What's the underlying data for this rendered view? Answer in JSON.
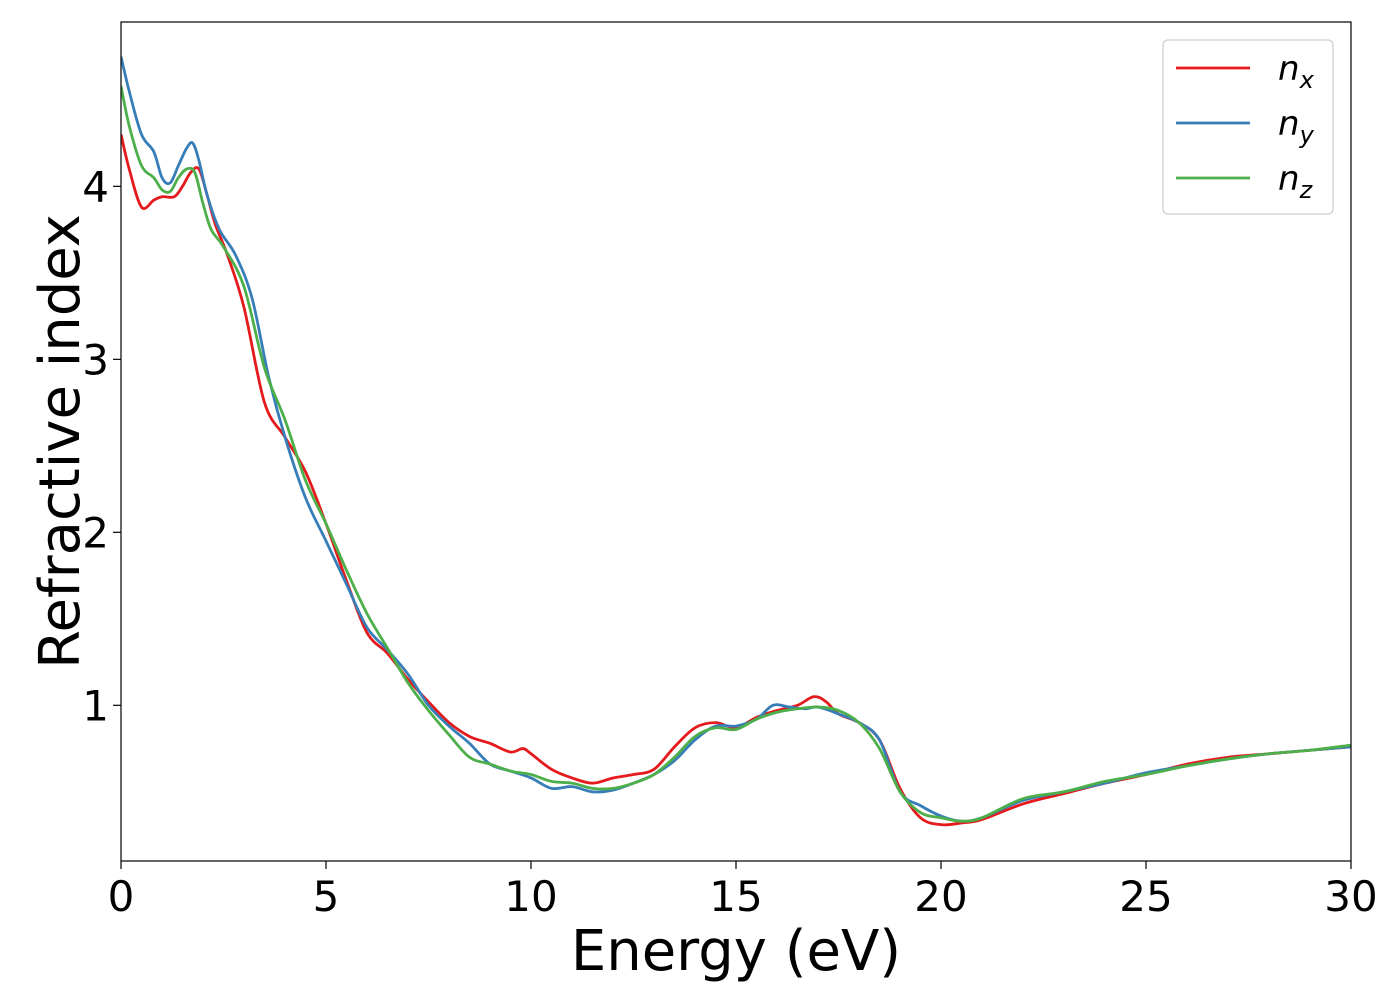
{
  "chart_data": {
    "type": "line",
    "xlabel": "Energy (eV)",
    "ylabel": "Refractive index",
    "xlim": [
      0,
      30
    ],
    "ylim": [
      0.1,
      4.95
    ],
    "xticks": [
      0,
      5,
      10,
      15,
      20,
      25,
      30
    ],
    "yticks": [
      1,
      2,
      3,
      4
    ],
    "grid": false,
    "legend_position": "top-right",
    "series": [
      {
        "name": "n_x",
        "legend_base": "n",
        "legend_sub": "x",
        "color": "#e41a1c",
        "x": [
          0,
          0.2,
          0.5,
          0.8,
          1.0,
          1.3,
          1.5,
          1.7,
          1.9,
          2.1,
          2.3,
          2.6,
          3.0,
          3.5,
          4.0,
          4.5,
          5.0,
          5.5,
          6.0,
          6.5,
          7.0,
          7.5,
          8.0,
          8.5,
          9.0,
          9.5,
          9.8,
          10.0,
          10.5,
          11.0,
          11.5,
          12.0,
          12.5,
          13.0,
          13.5,
          14.0,
          14.5,
          15.0,
          15.5,
          16.0,
          16.5,
          16.9,
          17.2,
          17.5,
          18.0,
          18.5,
          19.0,
          19.5,
          20.0,
          20.5,
          21.0,
          22.0,
          23.0,
          24.0,
          25.0,
          26.0,
          27.0,
          28.0,
          29.0,
          30.0
        ],
        "y": [
          4.3,
          4.1,
          3.88,
          3.92,
          3.94,
          3.94,
          4.0,
          4.08,
          4.1,
          3.95,
          3.78,
          3.6,
          3.3,
          2.75,
          2.55,
          2.35,
          2.05,
          1.72,
          1.42,
          1.3,
          1.15,
          1.02,
          0.9,
          0.82,
          0.78,
          0.73,
          0.75,
          0.72,
          0.63,
          0.58,
          0.55,
          0.58,
          0.6,
          0.63,
          0.76,
          0.87,
          0.9,
          0.87,
          0.93,
          0.97,
          1.0,
          1.05,
          1.02,
          0.95,
          0.9,
          0.8,
          0.52,
          0.35,
          0.31,
          0.32,
          0.34,
          0.43,
          0.49,
          0.55,
          0.6,
          0.66,
          0.7,
          0.72,
          0.74,
          0.76
        ]
      },
      {
        "name": "n_y",
        "legend_base": "n",
        "legend_sub": "y",
        "color": "#377eb8",
        "x": [
          0,
          0.2,
          0.5,
          0.8,
          1.0,
          1.2,
          1.4,
          1.6,
          1.75,
          1.9,
          2.1,
          2.4,
          2.8,
          3.2,
          3.6,
          4.0,
          4.5,
          5.0,
          5.5,
          6.0,
          6.5,
          7.0,
          7.5,
          8.0,
          8.5,
          9.0,
          9.5,
          10.0,
          10.5,
          11.0,
          11.5,
          12.0,
          12.5,
          13.0,
          13.5,
          14.0,
          14.5,
          15.0,
          15.5,
          15.9,
          16.3,
          16.7,
          17.0,
          17.5,
          18.0,
          18.5,
          19.0,
          19.5,
          20.0,
          20.5,
          21.0,
          22.0,
          23.0,
          24.0,
          25.0,
          26.0,
          27.0,
          28.0,
          29.0,
          30.0
        ],
        "y": [
          4.75,
          4.55,
          4.3,
          4.2,
          4.05,
          4.02,
          4.12,
          4.22,
          4.25,
          4.15,
          3.95,
          3.75,
          3.6,
          3.35,
          2.9,
          2.55,
          2.2,
          1.95,
          1.7,
          1.45,
          1.32,
          1.18,
          1.0,
          0.88,
          0.78,
          0.66,
          0.62,
          0.58,
          0.52,
          0.53,
          0.5,
          0.51,
          0.55,
          0.6,
          0.68,
          0.8,
          0.88,
          0.88,
          0.92,
          1.0,
          0.99,
          0.98,
          0.99,
          0.95,
          0.9,
          0.8,
          0.5,
          0.42,
          0.36,
          0.33,
          0.35,
          0.45,
          0.5,
          0.55,
          0.61,
          0.65,
          0.69,
          0.72,
          0.74,
          0.76
        ]
      },
      {
        "name": "n_z",
        "legend_base": "n",
        "legend_sub": "z",
        "color": "#4daf4a",
        "x": [
          0,
          0.2,
          0.5,
          0.8,
          1.0,
          1.2,
          1.4,
          1.6,
          1.8,
          2.0,
          2.2,
          2.5,
          3.0,
          3.5,
          4.0,
          4.5,
          5.0,
          5.5,
          6.0,
          6.5,
          7.0,
          7.5,
          8.0,
          8.5,
          9.0,
          9.5,
          10.0,
          10.5,
          11.0,
          11.5,
          12.0,
          12.5,
          13.0,
          13.5,
          14.0,
          14.5,
          15.0,
          15.5,
          16.0,
          16.5,
          17.0,
          17.5,
          18.0,
          18.5,
          19.0,
          19.5,
          20.0,
          20.5,
          21.0,
          22.0,
          23.0,
          24.0,
          25.0,
          26.0,
          27.0,
          28.0,
          29.0,
          30.0
        ],
        "y": [
          4.58,
          4.35,
          4.12,
          4.05,
          3.98,
          3.97,
          4.05,
          4.1,
          4.08,
          3.9,
          3.75,
          3.65,
          3.42,
          2.95,
          2.65,
          2.3,
          2.05,
          1.78,
          1.53,
          1.33,
          1.13,
          0.97,
          0.83,
          0.7,
          0.66,
          0.62,
          0.6,
          0.56,
          0.55,
          0.52,
          0.52,
          0.55,
          0.6,
          0.7,
          0.82,
          0.87,
          0.86,
          0.92,
          0.96,
          0.98,
          0.99,
          0.97,
          0.9,
          0.75,
          0.5,
          0.38,
          0.35,
          0.33,
          0.35,
          0.46,
          0.5,
          0.56,
          0.6,
          0.65,
          0.69,
          0.72,
          0.74,
          0.77
        ]
      }
    ]
  }
}
